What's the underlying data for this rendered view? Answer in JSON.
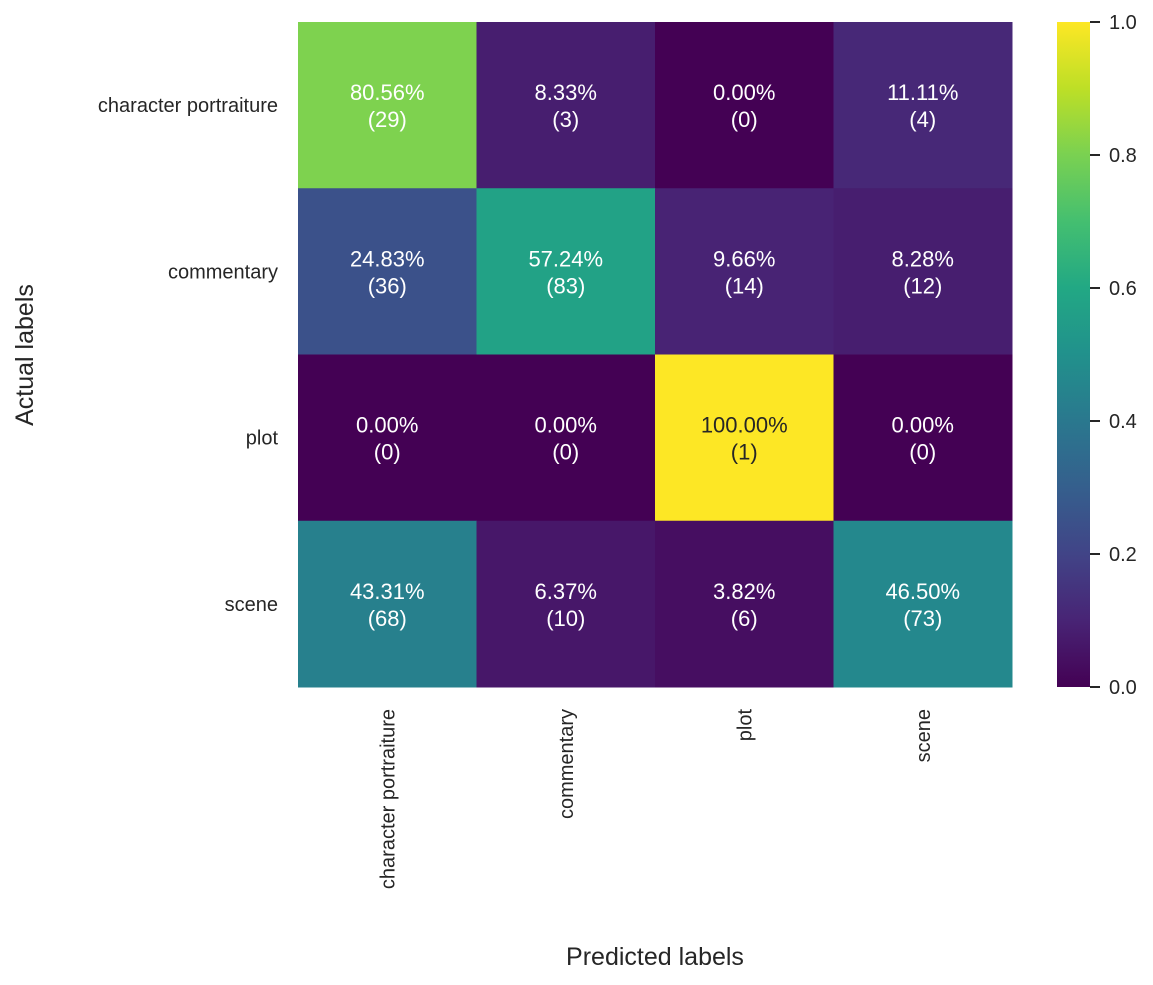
{
  "chart_data": {
    "type": "heatmap",
    "xlabel": "Predicted labels",
    "ylabel": "Actual labels",
    "x_categories": [
      "character portraiture",
      "commentary",
      "plot",
      "scene"
    ],
    "y_categories": [
      "character portraiture",
      "commentary",
      "plot",
      "scene"
    ],
    "values": [
      [
        0.8056,
        0.0833,
        0.0,
        0.1111
      ],
      [
        0.2483,
        0.5724,
        0.0966,
        0.0828
      ],
      [
        0.0,
        0.0,
        1.0,
        0.0
      ],
      [
        0.4331,
        0.0637,
        0.0382,
        0.465
      ]
    ],
    "cell_labels": [
      [
        "80.56%\n(29)",
        "8.33%\n(3)",
        "0.00%\n(0)",
        "11.11%\n(4)"
      ],
      [
        "24.83%\n(36)",
        "57.24%\n(83)",
        "9.66%\n(14)",
        "8.28%\n(12)"
      ],
      [
        "0.00%\n(0)",
        "0.00%\n(0)",
        "100.00%\n(1)",
        "0.00%\n(0)"
      ],
      [
        "43.31%\n(68)",
        "6.37%\n(10)",
        "3.82%\n(6)",
        "46.50%\n(73)"
      ]
    ],
    "colormap": "viridis",
    "colorbar": {
      "range": [
        0.0,
        1.0
      ],
      "ticks": [
        0.0,
        0.2,
        0.4,
        0.6,
        0.8,
        1.0
      ],
      "tick_labels": [
        "0.0",
        "0.2",
        "0.4",
        "0.6",
        "0.8",
        "1.0"
      ]
    },
    "grid": false
  }
}
